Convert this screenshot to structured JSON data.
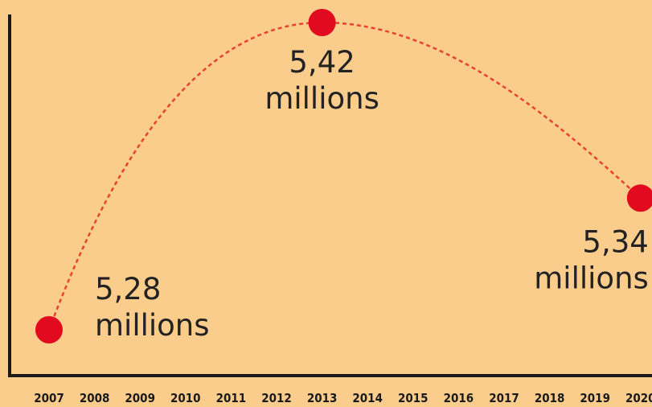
{
  "chart_data": {
    "type": "line",
    "title": "",
    "xlabel": "",
    "ylabel": "",
    "x": [
      "2007",
      "2008",
      "2009",
      "2010",
      "2011",
      "2012",
      "2013",
      "2014",
      "2015",
      "2016",
      "2017",
      "2018",
      "2019",
      "2020"
    ],
    "highlighted_x": "2013",
    "ylim": [
      5.25,
      5.45
    ],
    "points": [
      {
        "x": "2007",
        "y": 5.28,
        "value_label": "5,28",
        "unit_label": "millions"
      },
      {
        "x": "2013",
        "y": 5.42,
        "value_label": "5,42",
        "unit_label": "millions"
      },
      {
        "x": "2020",
        "y": 5.34,
        "value_label": "5,34",
        "unit_label": "millions"
      }
    ],
    "grid": false,
    "line_style": "dashed",
    "colors": {
      "background": "#fbcd8d",
      "marker": "#e10a1e",
      "line": "#e8432a",
      "highlight_tick": "#d81f26",
      "axis": "#1a1a1a"
    }
  }
}
